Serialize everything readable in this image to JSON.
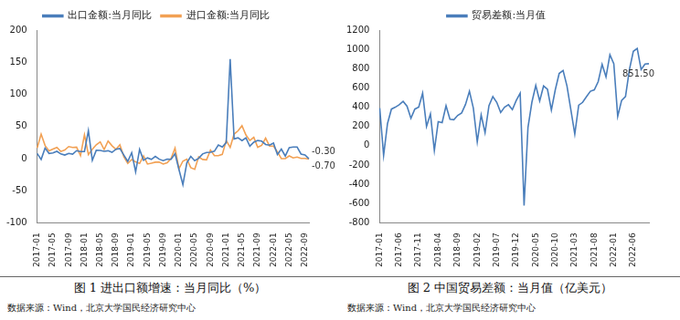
{
  "chart_data": [
    {
      "type": "line",
      "caption": "图 1 进出口额增速：当月同比（%）",
      "source": "数据来源：Wind，北京大学国民经济研究中心",
      "categories": [
        "2017-01",
        null,
        null,
        null,
        "2017-05",
        null,
        null,
        null,
        "2017-09",
        null,
        null,
        null,
        "2018-01",
        null,
        null,
        null,
        "2018-05",
        null,
        null,
        null,
        "2018-09",
        null,
        null,
        null,
        "2019-01",
        null,
        null,
        null,
        "2019-05",
        null,
        null,
        null,
        "2019-09",
        null,
        null,
        null,
        "2020-01",
        null,
        null,
        null,
        "2020-05",
        null,
        null,
        null,
        "2020-09",
        null,
        null,
        null,
        "2021-01",
        null,
        null,
        null,
        "2021-05",
        null,
        null,
        null,
        "2021-09",
        null,
        null,
        null,
        "2022-01",
        null,
        null,
        null,
        "2022-05",
        null,
        null,
        null,
        "2022-09",
        null
      ],
      "series": [
        {
          "name": "出口金额:当月同比",
          "color": "#4a7ebb",
          "values": [
            7.9,
            -1.3,
            16.4,
            8.0,
            8.7,
            11.3,
            7.2,
            5.5,
            8.1,
            6.9,
            12.3,
            10.9,
            11.1,
            43.5,
            -2.7,
            12.9,
            12.6,
            11.3,
            12.2,
            9.8,
            14.5,
            15.6,
            5.4,
            -4.4,
            9.1,
            -20.7,
            14.2,
            -2.7,
            1.1,
            -1.3,
            3.3,
            -1.0,
            -3.2,
            -0.9,
            -1.1,
            7.6,
            -17.2,
            -40.6,
            -6.6,
            3.5,
            -3.3,
            0.5,
            7.2,
            9.5,
            9.9,
            11.4,
            21.1,
            18.1,
            24.9,
            154.9,
            30.6,
            32.3,
            27.9,
            32.2,
            19.3,
            25.6,
            28.1,
            27.1,
            22.0,
            20.9,
            24.1,
            6.2,
            14.7,
            3.9,
            16.9,
            17.9,
            18.0,
            7.1,
            5.7,
            -0.3
          ]
        },
        {
          "name": "进口金额:当月同比",
          "color": "#f2a154",
          "values": [
            16.7,
            38.1,
            20.3,
            11.9,
            14.8,
            17.2,
            11.0,
            13.3,
            18.7,
            17.2,
            17.7,
            4.5,
            36.9,
            6.3,
            14.4,
            21.5,
            26.0,
            14.1,
            27.3,
            20.0,
            14.3,
            21.4,
            3.0,
            -7.6,
            -1.5,
            -5.2,
            -7.6,
            4.0,
            -8.5,
            -7.3,
            -5.6,
            -5.6,
            -8.5,
            -6.4,
            0.3,
            16.3,
            -15.9,
            -4.0,
            -0.9,
            -14.2,
            -16.7,
            2.7,
            -1.4,
            -2.1,
            13.2,
            4.7,
            4.5,
            6.5,
            28.0,
            17.3,
            38.1,
            43.1,
            51.1,
            36.7,
            28.1,
            33.1,
            17.6,
            20.6,
            31.7,
            19.5,
            19.5,
            10.4,
            -0.1,
            0.0,
            4.1,
            1.0,
            2.3,
            0.3,
            0.3,
            -0.7
          ]
        }
      ],
      "annotations": [
        {
          "series": "出口金额:当月同比",
          "text": "-0.30"
        },
        {
          "series": "进口金额:当月同比",
          "text": "-0.70"
        }
      ],
      "ylim": [
        -100,
        200
      ],
      "yticks": [
        -100,
        -50,
        0,
        50,
        100,
        150,
        200
      ],
      "grid": false,
      "legend": "top"
    },
    {
      "type": "line",
      "caption": "图 2 中国贸易差额：当月值（亿美元）",
      "source": "数据来源：Wind，北京大学国民经济研究中心",
      "categories": [
        "2017-01",
        null,
        null,
        null,
        null,
        "2017-06",
        null,
        null,
        null,
        null,
        "2017-11",
        null,
        null,
        null,
        null,
        "2018-04",
        null,
        null,
        null,
        null,
        "2018-09",
        null,
        null,
        null,
        null,
        "2019-02",
        null,
        null,
        null,
        null,
        "2019-07",
        null,
        null,
        null,
        null,
        "2019-12",
        null,
        null,
        null,
        null,
        "2020-05",
        null,
        null,
        null,
        null,
        "2020-10",
        null,
        null,
        null,
        null,
        "2021-03",
        null,
        null,
        null,
        null,
        "2021-08",
        null,
        null,
        null,
        null,
        "2022-01",
        null,
        null,
        null,
        null,
        "2022-06",
        null,
        null,
        null,
        null
      ],
      "series": [
        {
          "name": "贸易差额:当月值",
          "color": "#4a7ebb",
          "values": [
            390,
            -100,
            230,
            380,
            400,
            425,
            460,
            410,
            285,
            380,
            400,
            545,
            200,
            330,
            -50,
            250,
            240,
            415,
            275,
            270,
            315,
            340,
            430,
            565,
            390,
            40,
            320,
            135,
            415,
            510,
            450,
            345,
            400,
            425,
            375,
            470,
            545,
            -620,
            190,
            450,
            625,
            465,
            620,
            585,
            370,
            580,
            750,
            780,
            620,
            370,
            120,
            420,
            450,
            510,
            565,
            580,
            665,
            845,
            715,
            945,
            850,
            305,
            470,
            510,
            790,
            980,
            1010,
            790,
            847,
            851.5
          ]
        }
      ],
      "annotations": [
        {
          "series": "贸易差额:当月值",
          "text": "851.50"
        }
      ],
      "ylim": [
        -800,
        1200
      ],
      "yticks": [
        -800,
        -600,
        -400,
        -200,
        0,
        200,
        400,
        600,
        800,
        1000,
        1200
      ],
      "grid": false,
      "legend": "top"
    }
  ]
}
